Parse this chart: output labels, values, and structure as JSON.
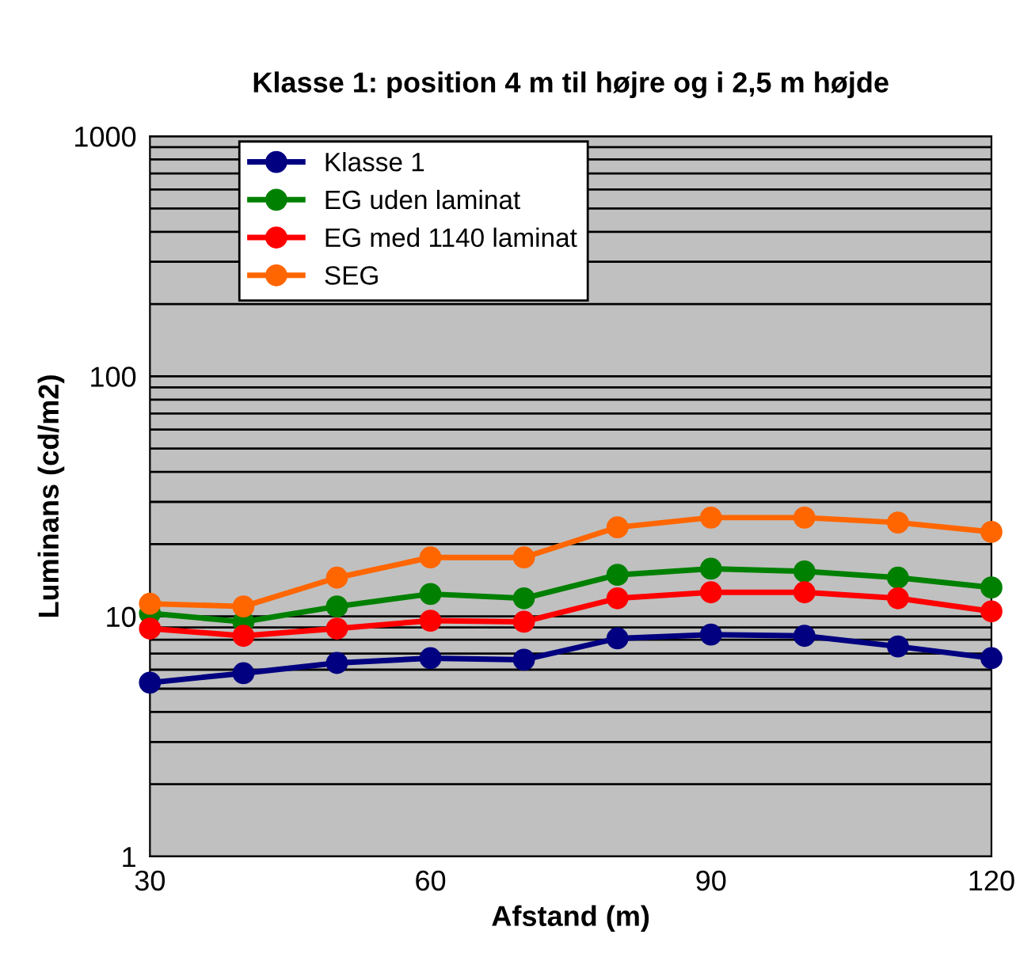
{
  "chart_data": {
    "type": "line",
    "title": "Klasse 1: position 4 m til højre og i 2,5 m højde",
    "xlabel": "Afstand (m)",
    "ylabel": "Luminans (cd/m2)",
    "x": [
      30,
      40,
      50,
      60,
      70,
      80,
      90,
      100,
      110,
      120
    ],
    "series": [
      {
        "name": "Klasse 1",
        "color": "#000080",
        "values": [
          5.3,
          5.8,
          6.4,
          6.7,
          6.6,
          8.1,
          8.4,
          8.3,
          7.5,
          6.7
        ]
      },
      {
        "name": "EG uden laminat",
        "color": "#008000",
        "values": [
          10.3,
          9.5,
          11.0,
          12.4,
          11.9,
          14.9,
          15.8,
          15.4,
          14.5,
          13.2
        ]
      },
      {
        "name": "EG med 1140 laminat",
        "color": "#ff0000",
        "values": [
          8.9,
          8.3,
          8.9,
          9.6,
          9.5,
          11.9,
          12.6,
          12.6,
          11.9,
          10.5
        ]
      },
      {
        "name": "SEG",
        "color": "#ff6600",
        "values": [
          11.3,
          11.0,
          14.5,
          17.6,
          17.6,
          23.5,
          25.8,
          25.8,
          24.6,
          22.5
        ]
      }
    ],
    "log": "y",
    "xlim": [
      30,
      120
    ],
    "xticks": [
      30,
      60,
      90,
      120
    ],
    "ylim": [
      1,
      1000
    ],
    "yticks": [
      1,
      {
        "value": 2,
        "label": null
      },
      {
        "value": 3,
        "label": null
      },
      {
        "value": 4,
        "label": null
      },
      {
        "value": 5,
        "label": null
      },
      {
        "value": 6,
        "label": null
      },
      {
        "value": 7,
        "label": null
      },
      {
        "value": 8,
        "label": null
      },
      {
        "value": 9,
        "label": null
      },
      10,
      {
        "value": 20,
        "label": null
      },
      {
        "value": 30,
        "label": null
      },
      {
        "value": 40,
        "label": null
      },
      {
        "value": 50,
        "label": null
      },
      {
        "value": 60,
        "label": null
      },
      {
        "value": 70,
        "label": null
      },
      {
        "value": 80,
        "label": null
      },
      {
        "value": 90,
        "label": null
      },
      100,
      {
        "value": 200,
        "label": null
      },
      {
        "value": 300,
        "label": null
      },
      {
        "value": 400,
        "label": null
      },
      {
        "value": 500,
        "label": null
      },
      {
        "value": 600,
        "label": null
      },
      {
        "value": 700,
        "label": null
      },
      {
        "value": 800,
        "label": null
      },
      {
        "value": 900,
        "label": null
      },
      1000
    ],
    "grid": "y",
    "legend": "top left",
    "marker": "circle",
    "line_style": "solid"
  }
}
